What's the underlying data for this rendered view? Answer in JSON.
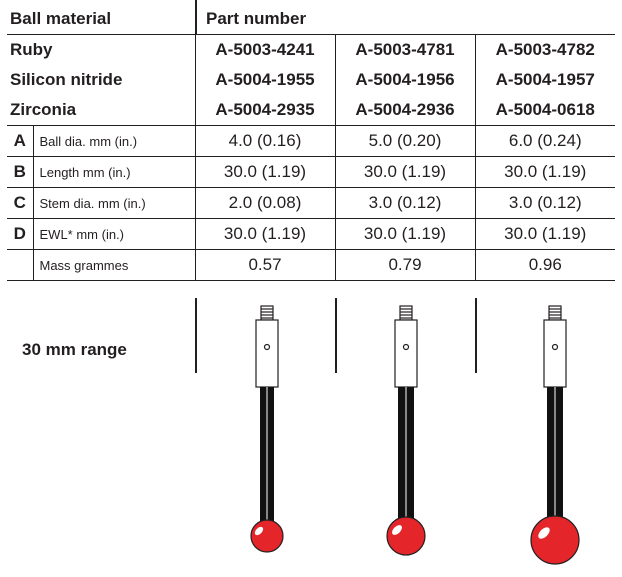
{
  "header": {
    "ball_material_label": "Ball material",
    "part_number_label": "Part number"
  },
  "materials": [
    {
      "name": "Ruby",
      "parts": [
        "A-5003-4241",
        "A-5003-4781",
        "A-5003-4782"
      ]
    },
    {
      "name": "Silicon nitride",
      "parts": [
        "A-5004-1955",
        "A-5004-1956",
        "A-5004-1957"
      ]
    },
    {
      "name": "Zirconia",
      "parts": [
        "A-5004-2935",
        "A-5004-2936",
        "A-5004-0618"
      ]
    }
  ],
  "specs": [
    {
      "letter": "A",
      "label": "Ball dia. mm (in.)",
      "values": [
        "4.0 (0.16)",
        "5.0 (0.20)",
        "6.0 (0.24)"
      ]
    },
    {
      "letter": "B",
      "label": "Length mm (in.)",
      "values": [
        "30.0 (1.19)",
        "30.0 (1.19)",
        "30.0 (1.19)"
      ]
    },
    {
      "letter": "C",
      "label": "Stem dia. mm (in.)",
      "values": [
        "2.0 (0.08)",
        "3.0 (0.12)",
        "3.0 (0.12)"
      ]
    },
    {
      "letter": "D",
      "label": "EWL* mm (in.)",
      "values": [
        "30.0 (1.19)",
        "30.0 (1.19)",
        "30.0 (1.19)"
      ]
    },
    {
      "letter": "",
      "label": "Mass grammes",
      "values": [
        "0.57",
        "0.79",
        "0.96"
      ]
    }
  ],
  "range_label": "30 mm range",
  "colors": {
    "ink": "#231f20",
    "ruby": "#e4262a",
    "stem": "#111111"
  }
}
